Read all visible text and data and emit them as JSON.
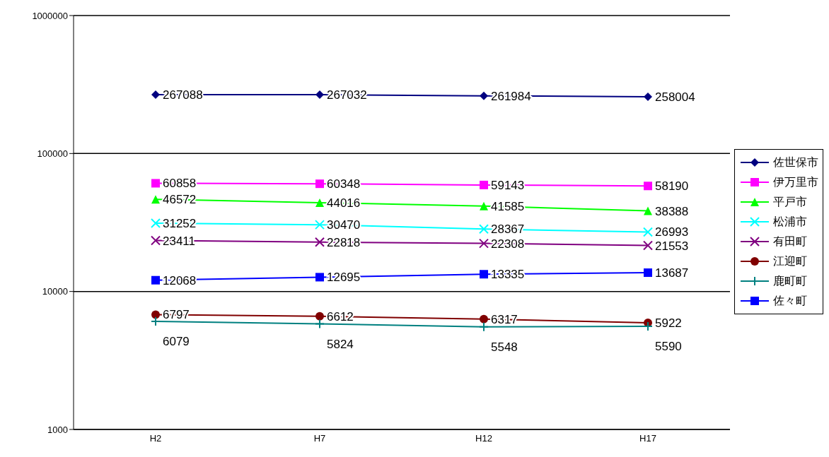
{
  "chart_data": {
    "type": "line",
    "categories": [
      "H2",
      "H7",
      "H12",
      "H17"
    ],
    "log": "y",
    "ylim": [
      1000,
      1000000
    ],
    "yticks": [
      1000,
      10000,
      100000,
      1000000
    ],
    "grid": "y",
    "legend": "right",
    "data_labels": true,
    "series": [
      {
        "name": "佐世保市",
        "color": "#000080",
        "marker": "diamond",
        "values": [
          267088,
          267032,
          261984,
          258004
        ]
      },
      {
        "name": "伊万里市",
        "color": "#ff00ff",
        "marker": "square",
        "values": [
          60858,
          60348,
          59143,
          58190
        ]
      },
      {
        "name": "平戸市",
        "color": "#00ff00",
        "marker": "triangle",
        "values": [
          46572,
          44016,
          41585,
          38388
        ]
      },
      {
        "name": "松浦市",
        "color": "#00ffff",
        "marker": "cross",
        "values": [
          31252,
          30470,
          28367,
          26993
        ]
      },
      {
        "name": "有田町",
        "color": "#800080",
        "marker": "cross",
        "values": [
          23411,
          22818,
          22308,
          21553
        ]
      },
      {
        "name": "江迎町",
        "color": "#800000",
        "marker": "circle",
        "values": [
          6797,
          6612,
          6317,
          5922
        ]
      },
      {
        "name": "鹿町町",
        "color": "#008080",
        "marker": "plus",
        "values": [
          6079,
          5824,
          5548,
          5590
        ]
      },
      {
        "name": "佐々町",
        "color": "#0000ff",
        "marker": "square",
        "values": [
          12068,
          12695,
          13335,
          13687
        ]
      }
    ]
  }
}
